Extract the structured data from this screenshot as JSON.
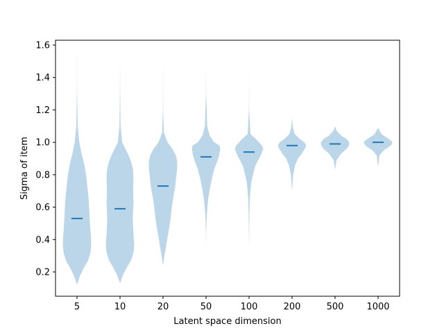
{
  "chart_data": {
    "type": "violin",
    "title": "",
    "xlabel": "Latent space dimension",
    "ylabel": "Sigma of item",
    "categories": [
      "5",
      "10",
      "20",
      "50",
      "100",
      "200",
      "500",
      "1000"
    ],
    "ylim": [
      0.05,
      1.63
    ],
    "yticks": [
      "0.2",
      "0.4",
      "0.6",
      "0.8",
      "1.0",
      "1.2",
      "1.4",
      "1.6"
    ],
    "grid": false,
    "colors": {
      "body": "#bcd6e9",
      "median": "#1f77b4"
    },
    "medians": [
      0.53,
      0.59,
      0.73,
      0.91,
      0.94,
      0.98,
      0.99,
      1.0
    ],
    "violins": [
      {
        "min": 0.12,
        "max": 1.58,
        "y": [
          0.12,
          0.17,
          0.22,
          0.27,
          0.32,
          0.37,
          0.42,
          0.47,
          0.52,
          0.57,
          0.62,
          0.67,
          0.72,
          0.77,
          0.82,
          0.87,
          0.92,
          1.0,
          1.1,
          1.3,
          1.58
        ],
        "width": [
          0.0,
          0.18,
          0.45,
          0.78,
          0.95,
          1.0,
          0.98,
          0.93,
          0.9,
          0.87,
          0.84,
          0.8,
          0.74,
          0.68,
          0.6,
          0.5,
          0.35,
          0.16,
          0.05,
          0.01,
          0.0
        ]
      },
      {
        "min": 0.13,
        "max": 1.56,
        "y": [
          0.13,
          0.18,
          0.23,
          0.28,
          0.33,
          0.38,
          0.43,
          0.48,
          0.53,
          0.58,
          0.63,
          0.68,
          0.73,
          0.78,
          0.83,
          0.88,
          0.93,
          1.0,
          1.1,
          1.3,
          1.56
        ],
        "width": [
          0.0,
          0.2,
          0.5,
          0.82,
          0.97,
          1.0,
          0.95,
          0.92,
          0.9,
          0.92,
          0.95,
          0.93,
          0.93,
          0.95,
          0.92,
          0.78,
          0.55,
          0.15,
          0.04,
          0.01,
          0.0
        ]
      },
      {
        "min": 0.24,
        "max": 1.52,
        "y": [
          0.24,
          0.3,
          0.36,
          0.42,
          0.48,
          0.54,
          0.6,
          0.66,
          0.72,
          0.78,
          0.84,
          0.88,
          0.92,
          0.96,
          1.0,
          1.06,
          1.2,
          1.52
        ],
        "width": [
          0.0,
          0.1,
          0.22,
          0.33,
          0.45,
          0.55,
          0.62,
          0.72,
          0.85,
          0.92,
          1.0,
          1.0,
          0.9,
          0.66,
          0.32,
          0.06,
          0.01,
          0.0
        ]
      },
      {
        "min": 0.32,
        "max": 1.5,
        "y": [
          0.32,
          0.45,
          0.55,
          0.65,
          0.72,
          0.78,
          0.84,
          0.88,
          0.92,
          0.96,
          0.98,
          1.0,
          1.04,
          1.1,
          1.3,
          1.5
        ],
        "width": [
          0.0,
          0.01,
          0.05,
          0.15,
          0.28,
          0.42,
          0.6,
          0.78,
          0.92,
          1.0,
          0.95,
          0.58,
          0.26,
          0.08,
          0.01,
          0.0
        ]
      },
      {
        "min": 0.35,
        "max": 1.46,
        "y": [
          0.35,
          0.5,
          0.65,
          0.75,
          0.8,
          0.85,
          0.88,
          0.91,
          0.94,
          0.96,
          0.98,
          1.0,
          1.02,
          1.05,
          1.2,
          1.46
        ],
        "width": [
          0.0,
          0.02,
          0.05,
          0.15,
          0.28,
          0.42,
          0.58,
          0.78,
          0.92,
          1.0,
          0.9,
          0.7,
          0.5,
          0.1,
          0.01,
          0.0
        ]
      },
      {
        "min": 0.7,
        "max": 1.15,
        "y": [
          0.7,
          0.8,
          0.86,
          0.9,
          0.93,
          0.96,
          0.98,
          1.0,
          1.02,
          1.05,
          1.09,
          1.15
        ],
        "width": [
          0.0,
          0.08,
          0.22,
          0.42,
          0.68,
          0.9,
          1.0,
          0.88,
          0.55,
          0.2,
          0.06,
          0.0
        ]
      },
      {
        "min": 0.83,
        "max": 1.1,
        "y": [
          0.83,
          0.89,
          0.93,
          0.96,
          0.98,
          1.0,
          1.02,
          1.04,
          1.07,
          1.1
        ],
        "width": [
          0.0,
          0.1,
          0.42,
          0.82,
          0.98,
          1.0,
          0.82,
          0.45,
          0.12,
          0.0
        ]
      },
      {
        "min": 0.85,
        "max": 1.09,
        "y": [
          0.85,
          0.92,
          0.95,
          0.97,
          0.99,
          1.0,
          1.01,
          1.03,
          1.05,
          1.09
        ],
        "width": [
          0.0,
          0.1,
          0.4,
          0.75,
          0.98,
          1.0,
          0.92,
          0.6,
          0.25,
          0.0
        ]
      }
    ]
  }
}
